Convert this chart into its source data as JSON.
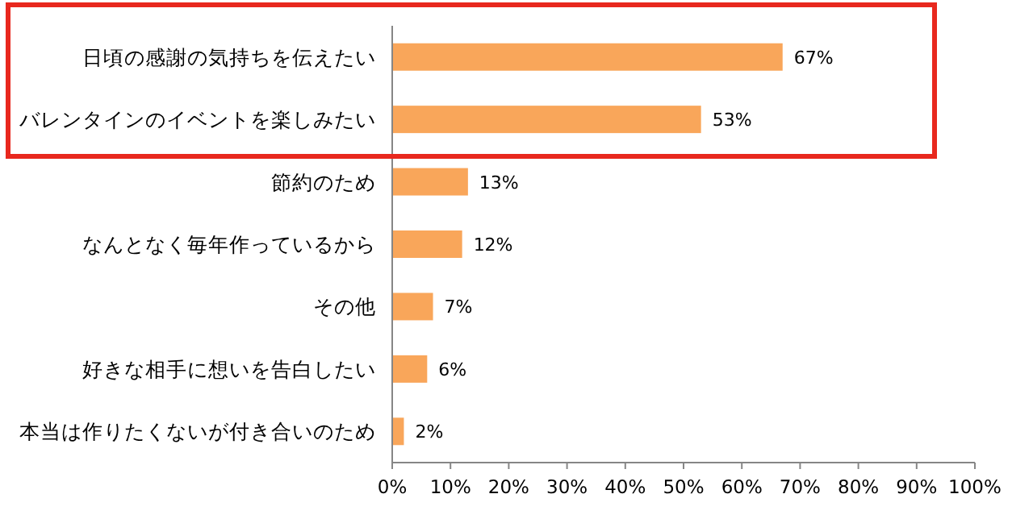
{
  "chart_data": {
    "type": "bar",
    "orientation": "horizontal",
    "categories": [
      "日頃の感謝の気持ちを伝えたい",
      "バレンタインのイベントを楽しみたい",
      "節約のため",
      "なんとなく毎年作っているから",
      "その他",
      "好きな相手に想いを告白したい",
      "本当は作りたくないが付き合いのため"
    ],
    "values": [
      67,
      53,
      13,
      12,
      7,
      6,
      2
    ],
    "value_labels": [
      "67%",
      "53%",
      "13%",
      "12%",
      "7%",
      "6%",
      "2%"
    ],
    "color": "#f9a65a",
    "xlim": [
      0,
      100
    ],
    "xticks": [
      {
        "value": 0,
        "label": "0%"
      },
      {
        "value": 10,
        "label": "10%"
      },
      {
        "value": 20,
        "label": "20%"
      },
      {
        "value": 30,
        "label": "30%"
      },
      {
        "value": 40,
        "label": "40%"
      },
      {
        "value": 50,
        "label": "50%"
      },
      {
        "value": 60,
        "label": "60%"
      },
      {
        "value": 70,
        "label": "70%"
      },
      {
        "value": 80,
        "label": "80%"
      },
      {
        "value": 90,
        "label": "90%"
      },
      {
        "value": 100,
        "label": "100%"
      }
    ],
    "grid": false
  }
}
